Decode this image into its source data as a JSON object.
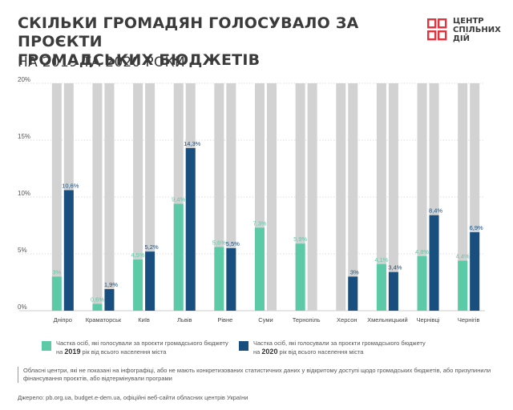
{
  "header": {
    "title_line1": "СКІЛЬКИ ГРОМАДЯН ГОЛОСУВАЛО ЗА ПРОЄКТИ",
    "title_line2": "ГРОМАДСЬКИХ БЮДЖЕТІВ",
    "subtitle": "НА 2019 ТА 2020 РОКИ"
  },
  "logo": {
    "line1": "ЦЕНТР",
    "line2": "СПІЛЬНИХ",
    "line3": "ДІЙ",
    "color": "#e0343e"
  },
  "colors": {
    "y2019": "#5cc9a7",
    "y2020": "#184f7f",
    "background_bar": "#d2d2d2",
    "label_2019": "#5cc9a7",
    "label_2020": "#184f7f"
  },
  "chart_data": {
    "type": "bar",
    "title": "",
    "xlabel": "",
    "ylabel": "",
    "ylim": [
      0,
      20
    ],
    "yticks": [
      "0%",
      "5%",
      "10%",
      "15%",
      "20%"
    ],
    "grid": true,
    "categories": [
      "Дніпро",
      "Краматорськ",
      "Київ",
      "Львів",
      "Рівне",
      "Суми",
      "Тернопіль",
      "Херсон",
      "Хмельницький",
      "Чернівці",
      "Чернігів"
    ],
    "series": [
      {
        "key": "2019",
        "values": [
          3.0,
          0.6,
          4.5,
          9.4,
          5.6,
          7.3,
          5.9,
          null,
          4.1,
          4.8,
          4.4
        ],
        "labels": [
          "3%",
          "0,6%",
          "4,5%",
          "9,4%",
          "5,6%",
          "7,3%",
          "5,9%",
          "",
          "4,1%",
          "4,8%",
          "4,4%"
        ]
      },
      {
        "key": "2020",
        "values": [
          10.6,
          1.9,
          5.2,
          14.3,
          5.5,
          null,
          null,
          3.0,
          3.4,
          8.4,
          6.9
        ],
        "labels": [
          "10,6%",
          "1,9%",
          "5,2%",
          "14,3%",
          "5,5%",
          "",
          "",
          "3%",
          "3,4%",
          "8,4%",
          "6,9%"
        ]
      }
    ],
    "legend_placement": "bottom"
  },
  "legend": {
    "item2019_text_a": "Частка осіб, які голосували за проєкти громадського бюджету на",
    "item2019_year": "2019",
    "item2019_text_b": "рік від всього населення міста",
    "item2020_text_a": "Частка осіб, які голосували за проєкти громадського бюджету на",
    "item2020_year": "2020",
    "item2020_text_b": "рік від всього населення міста"
  },
  "footer": {
    "note": "Обласні центри, які не показані на інфографіці, або не мають конкретизованих статистичних даних у відкритому доступі щодо громадських бюджетів, або призупинили фінансування проєктів, або відтермінували програми",
    "source": "Джерело: pb.org.ua, budget.e-dem.ua, офіційні веб-сайти обласних центрів України"
  }
}
